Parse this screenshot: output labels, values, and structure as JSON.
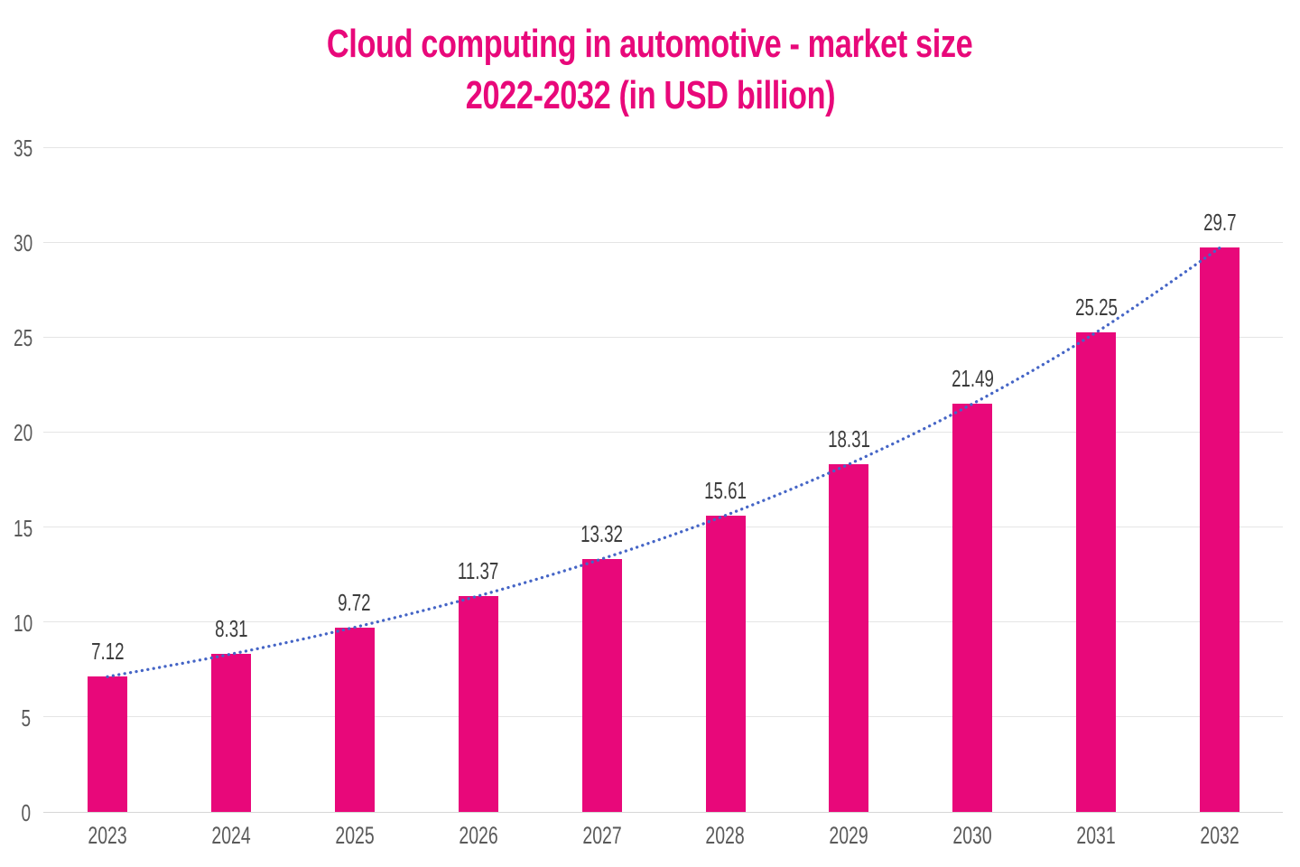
{
  "title": {
    "line1": "Cloud computing in automotive - market size",
    "line2": "2022-2032 (in USD billion)"
  },
  "colors": {
    "title_pink": "#e8087a",
    "bar_pink": "#e8087a",
    "trend_blue": "#4565c6",
    "gridline": "#e5e5e5",
    "baseline": "#d6d6d6",
    "axis_text": "#5a5a5a",
    "value_text": "#3c3c3c",
    "background": "#ffffff"
  },
  "chart_data": {
    "type": "bar",
    "title": "Cloud computing in automotive - market size 2022-2032 (in USD billion)",
    "categories": [
      "2023",
      "2024",
      "2025",
      "2026",
      "2027",
      "2028",
      "2029",
      "2030",
      "2031",
      "2032"
    ],
    "values": [
      7.12,
      8.31,
      9.72,
      11.37,
      13.32,
      15.61,
      18.31,
      21.49,
      25.25,
      29.7
    ],
    "value_labels": [
      "7.12",
      "8.31",
      "9.72",
      "11.37",
      "13.32",
      "15.61",
      "18.31",
      "21.49",
      "25.25",
      "29.7"
    ],
    "xlabel": "",
    "ylabel": "",
    "ylim": [
      0,
      35
    ],
    "yticks": [
      0,
      5,
      10,
      15,
      20,
      25,
      30,
      35
    ],
    "ytick_labels": [
      "0",
      "5",
      "10",
      "15",
      "20",
      "25",
      "30",
      "35"
    ],
    "grid": "horizontal",
    "legend": "none",
    "bar_color": "#e8087a",
    "trendline": {
      "style": "dotted",
      "color": "#4565c6",
      "description": "smooth dotted trend curve through bar tops"
    }
  }
}
